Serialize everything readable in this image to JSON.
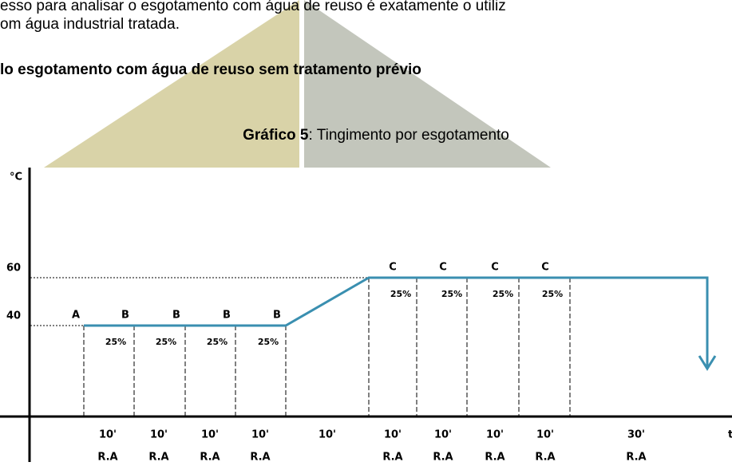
{
  "text": {
    "lines": [
      "esso para analisar o esgotamento com água de reuso é exatamente o utiliz",
      "om água industrial tratada."
    ],
    "heading": "lo esgotamento com água de reuso sem tratamento prévio",
    "caption_label": "Gráfico 5",
    "caption_text": ": Tingimento por esgotamento"
  },
  "graph": {
    "y_axis_label": "°C",
    "x_axis_label": "t",
    "yticks": [
      40,
      60
    ],
    "top_labels": [
      "A",
      "B",
      "B",
      "B",
      "B",
      "C",
      "C",
      "C",
      "C"
    ],
    "percent_labels": [
      "25%",
      "25%",
      "25%",
      "25%",
      "25%",
      "25%",
      "25%",
      "25%"
    ],
    "durations": [
      "10'",
      "10'",
      "10'",
      "10'",
      "10'",
      "10'",
      "10'",
      "10'",
      "10'",
      "30'"
    ],
    "duration_notes": [
      "R.A",
      "R.A",
      "R.A",
      "R.A",
      null,
      "R.A",
      "R.A",
      "R.A",
      "R.A",
      "R.A"
    ]
  }
}
